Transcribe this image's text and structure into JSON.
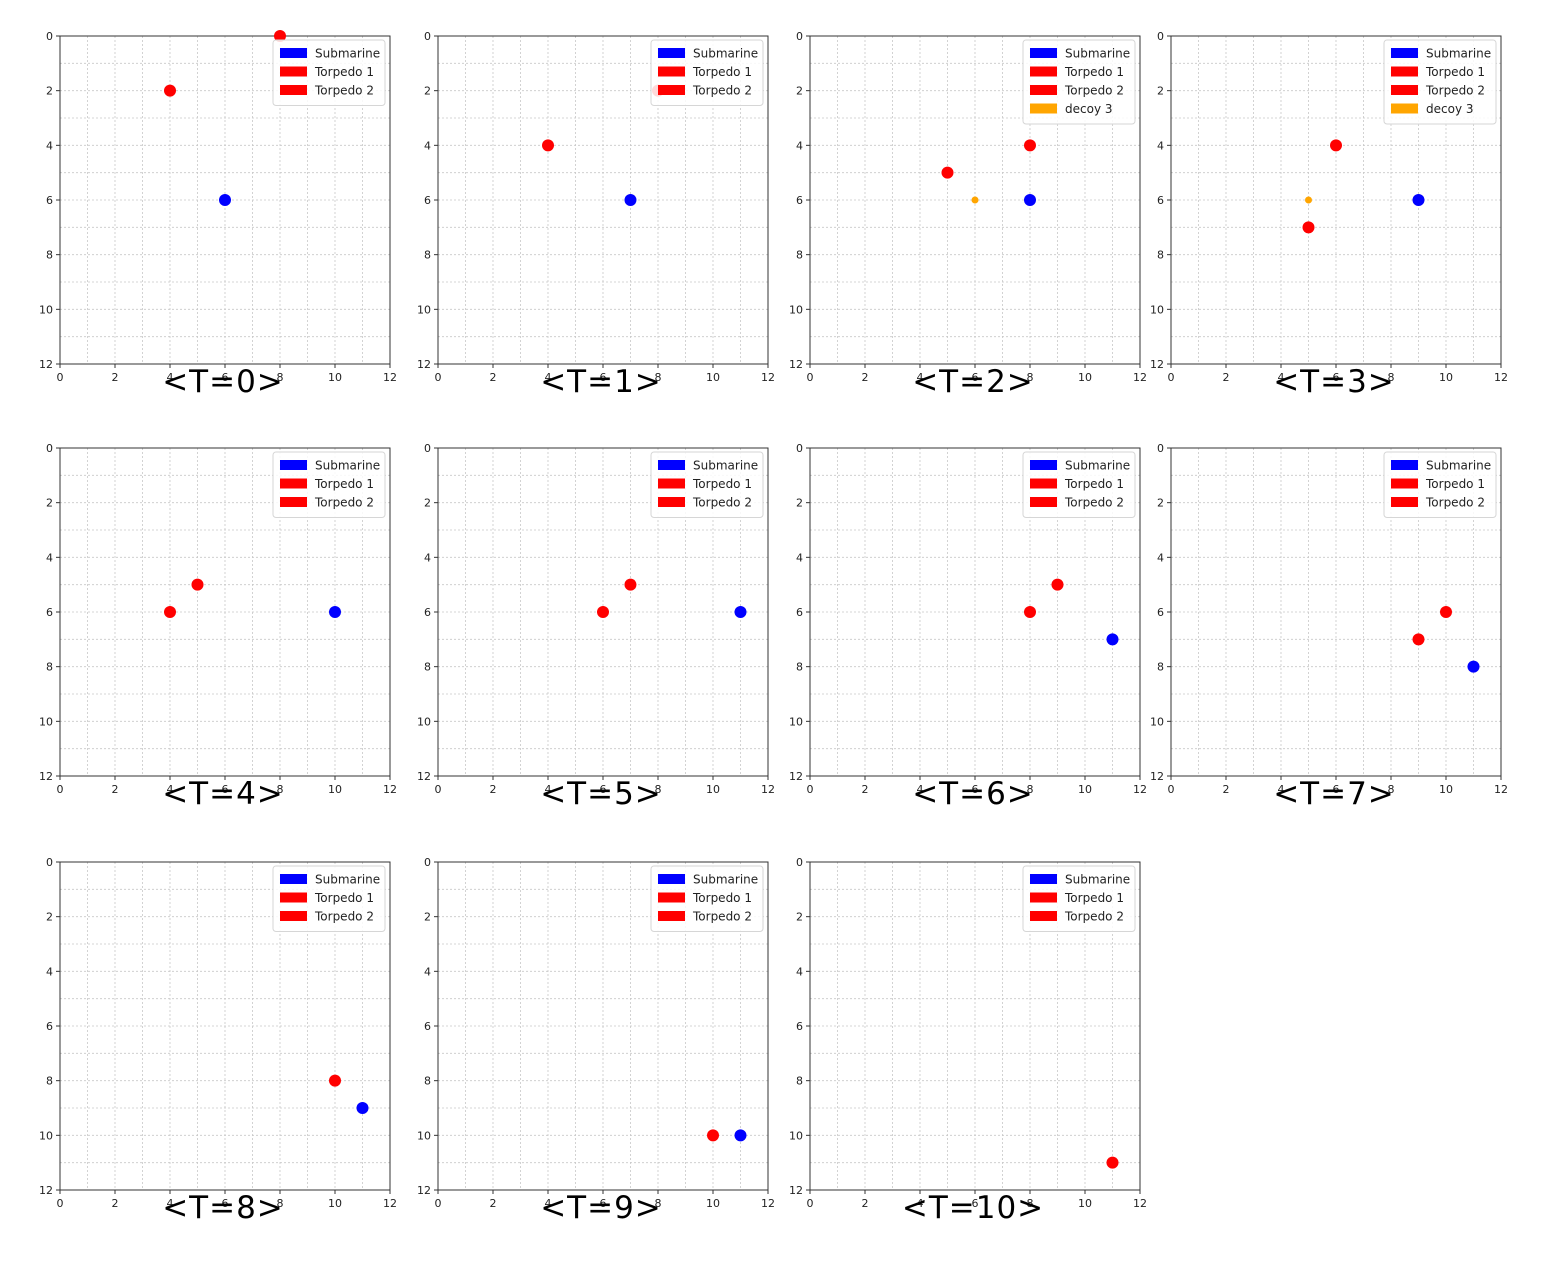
{
  "chart_data": {
    "type": "scatter",
    "axes": {
      "xlim": [
        0,
        12
      ],
      "ylim": [
        12,
        0
      ],
      "y_inverted": true,
      "xticks": [
        0,
        2,
        4,
        6,
        8,
        10,
        12
      ],
      "yticks": [
        0,
        2,
        4,
        6,
        8,
        10,
        12
      ],
      "grid": true,
      "grid_style": "dashed",
      "minor_step": 1
    },
    "legend_position": "top-right",
    "colors": {
      "Submarine": "#0000ff",
      "Torpedo 1": "#ff0000",
      "Torpedo 2": "#ff0000",
      "decoy 3": "#ffa500"
    },
    "panels": [
      {
        "caption": "<T=0>",
        "legend": [
          "Submarine",
          "Torpedo 1",
          "Torpedo 2"
        ],
        "points": [
          {
            "series": "Submarine",
            "x": 6,
            "y": 6
          },
          {
            "series": "Torpedo 1",
            "x": 4,
            "y": 2
          },
          {
            "series": "Torpedo 2",
            "x": 8,
            "y": 0
          }
        ]
      },
      {
        "caption": "<T=1>",
        "legend": [
          "Submarine",
          "Torpedo 1",
          "Torpedo 2"
        ],
        "points": [
          {
            "series": "Submarine",
            "x": 7,
            "y": 6
          },
          {
            "series": "Torpedo 1",
            "x": 4,
            "y": 4
          },
          {
            "series": "Torpedo 2",
            "x": 8,
            "y": 2
          }
        ]
      },
      {
        "caption": "<T=2>",
        "legend": [
          "Submarine",
          "Torpedo 1",
          "Torpedo 2",
          "decoy 3"
        ],
        "points": [
          {
            "series": "Submarine",
            "x": 8,
            "y": 6
          },
          {
            "series": "Torpedo 1",
            "x": 5,
            "y": 5
          },
          {
            "series": "Torpedo 2",
            "x": 8,
            "y": 4
          },
          {
            "series": "decoy 3",
            "x": 6,
            "y": 6
          }
        ]
      },
      {
        "caption": "<T=3>",
        "legend": [
          "Submarine",
          "Torpedo 1",
          "Torpedo 2",
          "decoy 3"
        ],
        "points": [
          {
            "series": "Submarine",
            "x": 9,
            "y": 6
          },
          {
            "series": "Torpedo 1",
            "x": 5,
            "y": 7
          },
          {
            "series": "Torpedo 2",
            "x": 6,
            "y": 4
          },
          {
            "series": "decoy 3",
            "x": 5,
            "y": 6
          }
        ]
      },
      {
        "caption": "<T=4>",
        "legend": [
          "Submarine",
          "Torpedo 1",
          "Torpedo 2"
        ],
        "points": [
          {
            "series": "Submarine",
            "x": 10,
            "y": 6
          },
          {
            "series": "Torpedo 1",
            "x": 4,
            "y": 6
          },
          {
            "series": "Torpedo 2",
            "x": 5,
            "y": 5
          }
        ]
      },
      {
        "caption": "<T=5>",
        "legend": [
          "Submarine",
          "Torpedo 1",
          "Torpedo 2"
        ],
        "points": [
          {
            "series": "Submarine",
            "x": 11,
            "y": 6
          },
          {
            "series": "Torpedo 1",
            "x": 6,
            "y": 6
          },
          {
            "series": "Torpedo 2",
            "x": 7,
            "y": 5
          }
        ]
      },
      {
        "caption": "<T=6>",
        "legend": [
          "Submarine",
          "Torpedo 1",
          "Torpedo 2"
        ],
        "points": [
          {
            "series": "Submarine",
            "x": 11,
            "y": 7
          },
          {
            "series": "Torpedo 1",
            "x": 8,
            "y": 6
          },
          {
            "series": "Torpedo 2",
            "x": 9,
            "y": 5
          }
        ]
      },
      {
        "caption": "<T=7>",
        "legend": [
          "Submarine",
          "Torpedo 1",
          "Torpedo 2"
        ],
        "points": [
          {
            "series": "Submarine",
            "x": 11,
            "y": 8
          },
          {
            "series": "Torpedo 1",
            "x": 9,
            "y": 7
          },
          {
            "series": "Torpedo 2",
            "x": 10,
            "y": 6
          }
        ]
      },
      {
        "caption": "<T=8>",
        "legend": [
          "Submarine",
          "Torpedo 1",
          "Torpedo 2"
        ],
        "points": [
          {
            "series": "Submarine",
            "x": 11,
            "y": 9
          },
          {
            "series": "Torpedo 1",
            "x": 10,
            "y": 8
          }
        ]
      },
      {
        "caption": "<T=9>",
        "legend": [
          "Submarine",
          "Torpedo 1",
          "Torpedo 2"
        ],
        "points": [
          {
            "series": "Submarine",
            "x": 11,
            "y": 10
          },
          {
            "series": "Torpedo 1",
            "x": 10,
            "y": 10
          }
        ]
      },
      {
        "caption": "<T=10>",
        "legend": [
          "Submarine",
          "Torpedo 1",
          "Torpedo 2"
        ],
        "points": [
          {
            "series": "Torpedo 1",
            "x": 11,
            "y": 11
          }
        ]
      }
    ]
  }
}
